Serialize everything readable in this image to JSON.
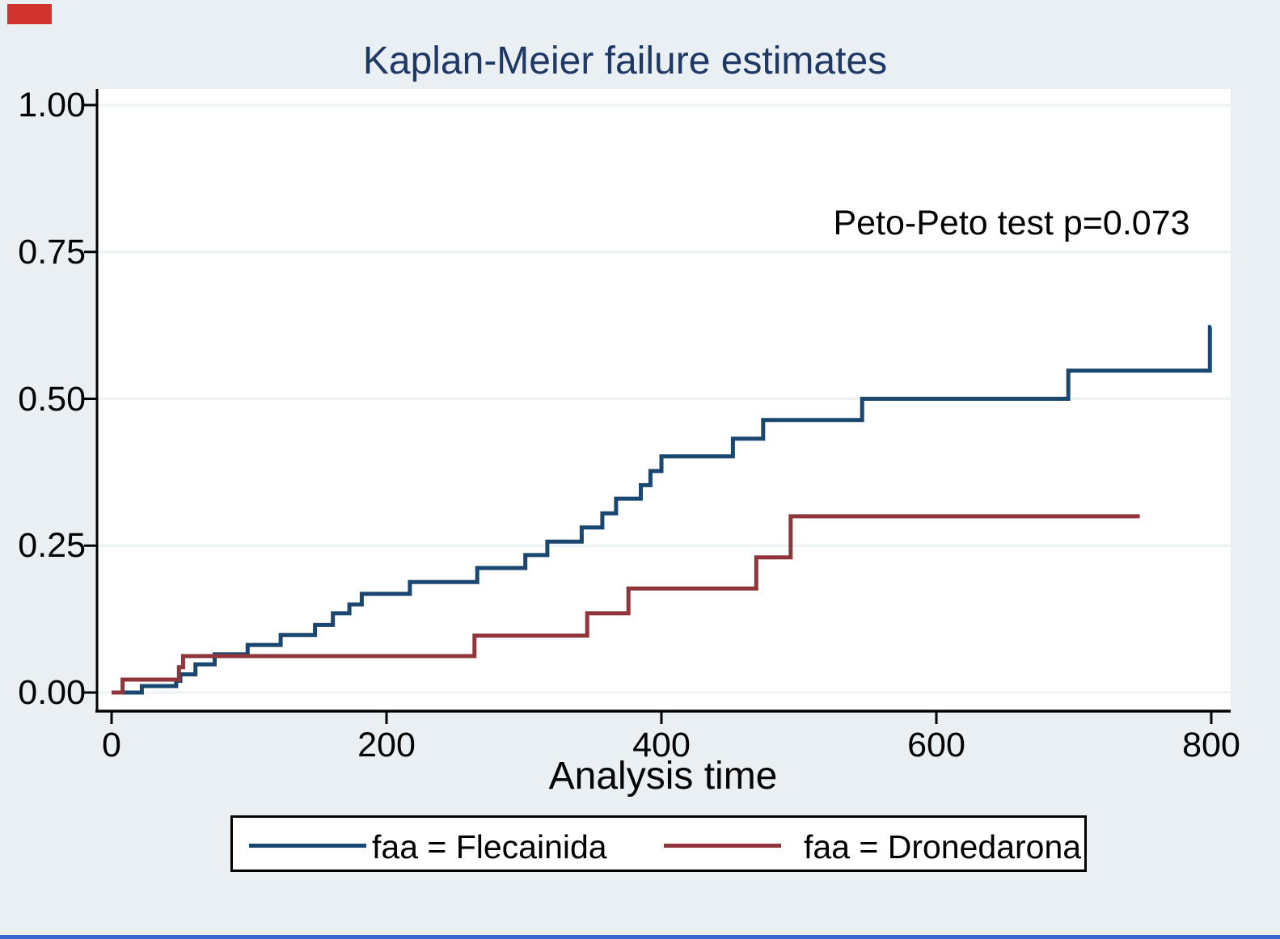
{
  "title": "Kaplan-Meier failure estimates",
  "annotation": "Peto-Peto test p=0.073",
  "x_axis": {
    "label": "Analysis time",
    "tick_labels": [
      "0",
      "200",
      "400",
      "600",
      "800"
    ],
    "tick_values": [
      0,
      200,
      400,
      600,
      800
    ]
  },
  "y_axis": {
    "tick_labels": [
      "0.00",
      "0.25",
      "0.50",
      "0.75",
      "1.00"
    ],
    "tick_values": [
      0,
      0.25,
      0.5,
      0.75,
      1.0
    ]
  },
  "legend": {
    "items": [
      {
        "label": "faa = Flecainida",
        "color": "#1a476f"
      },
      {
        "label": "faa = Dronedarona",
        "color": "#90353b"
      }
    ]
  },
  "colors": {
    "page_background": "#e9eff2",
    "plot_background": "#ffffff",
    "gridline": "#edf2f5",
    "axis": "#000000",
    "title_text": "#1f3864",
    "flecainida_line": "#1a476f",
    "dronedarona_line": "#90353b",
    "corner_mark_red": "#d0342c",
    "bottom_stripe_blue": "#3a67cf"
  },
  "chart_data": {
    "type": "line",
    "subtype": "kaplan-meier-failure-step",
    "title": "Kaplan-Meier failure estimates",
    "xlabel": "Analysis time",
    "ylabel": "",
    "xlim": [
      0,
      800
    ],
    "ylim": [
      0,
      1
    ],
    "grid": "horizontal",
    "legend_position": "bottom",
    "annotation": "Peto-Peto test p=0.073",
    "series": [
      {
        "name": "faa = Flecainida",
        "color": "#1a476f",
        "end_t": 800,
        "points": [
          [
            0,
            0.0
          ],
          [
            22,
            0.011
          ],
          [
            47,
            0.02
          ],
          [
            50,
            0.031
          ],
          [
            61,
            0.048
          ],
          [
            75,
            0.065
          ],
          [
            99,
            0.081
          ],
          [
            123,
            0.098
          ],
          [
            148,
            0.115
          ],
          [
            161,
            0.135
          ],
          [
            173,
            0.15
          ],
          [
            182,
            0.168
          ],
          [
            217,
            0.188
          ],
          [
            266,
            0.212
          ],
          [
            301,
            0.234
          ],
          [
            317,
            0.257
          ],
          [
            342,
            0.281
          ],
          [
            357,
            0.305
          ],
          [
            367,
            0.33
          ],
          [
            385,
            0.353
          ],
          [
            392,
            0.377
          ],
          [
            400,
            0.402
          ],
          [
            452,
            0.432
          ],
          [
            474,
            0.464
          ],
          [
            546,
            0.5
          ],
          [
            696,
            0.548
          ],
          [
            799,
            0.622
          ]
        ]
      },
      {
        "name": "faa = Dronedarona",
        "color": "#90353b",
        "end_t": 748,
        "points": [
          [
            0,
            0.0
          ],
          [
            8,
            0.022
          ],
          [
            49,
            0.043
          ],
          [
            52,
            0.062
          ],
          [
            264,
            0.097
          ],
          [
            346,
            0.135
          ],
          [
            376,
            0.177
          ],
          [
            469,
            0.23
          ],
          [
            494,
            0.3
          ]
        ]
      }
    ]
  }
}
